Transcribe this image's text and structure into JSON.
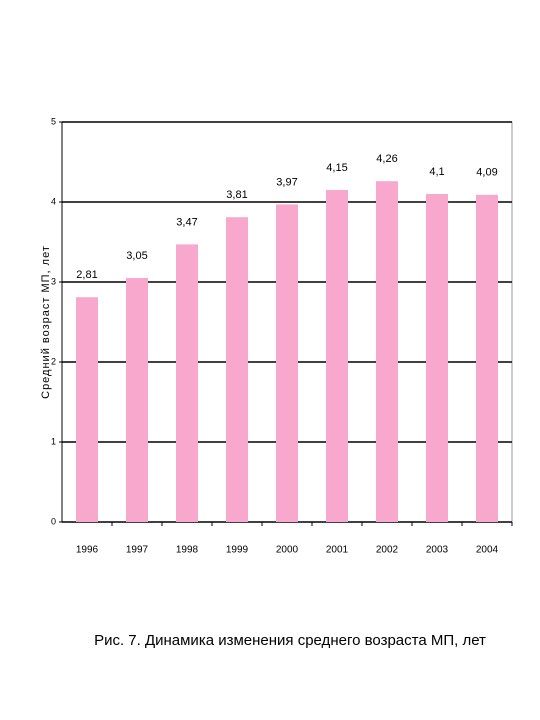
{
  "chart_data": {
    "type": "bar",
    "y_label": "Средний возраст МП, лет",
    "caption": "Рис. 7. Динамика изменения среднего возраста МП, лет",
    "categories": [
      "1996",
      "1997",
      "1998",
      "1999",
      "2000",
      "2001",
      "2002",
      "2003",
      "2004"
    ],
    "values": [
      2.81,
      3.05,
      3.47,
      3.81,
      3.97,
      4.15,
      4.26,
      4.1,
      4.09
    ],
    "value_labels": [
      "2,81",
      "3,05",
      "3,47",
      "3,81",
      "3,97",
      "4,15",
      "4,26",
      "4,1",
      "4,09"
    ],
    "color": "#f7a8cc",
    "ylim": [
      0,
      5
    ],
    "yticks": [
      0,
      1,
      2,
      3,
      4,
      5
    ],
    "grid": true
  }
}
